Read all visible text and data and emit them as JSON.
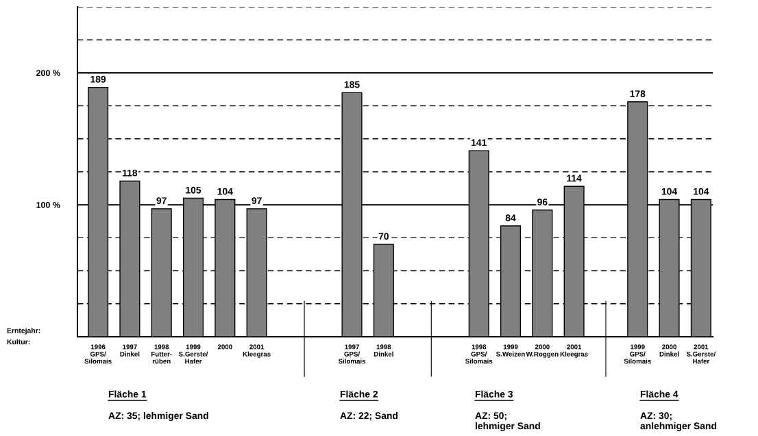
{
  "chart_data": {
    "type": "bar",
    "categories": [
      "1996\nGPS/\nSilomais",
      "1997\nDinkel",
      "1998\nFutter-\nrüben",
      "1999\nS.Gerste/\nHafer",
      "2000",
      "2001\nKleegras",
      null,
      null,
      "1997\nGPS/\nSilomais",
      "1998\nDinkel",
      null,
      null,
      "1998\nGPS/\nSilomais",
      "1999\nS.Weizen",
      "2000\nW.Roggen",
      "2001\nKleegras",
      null,
      "1999\nGPS/\nSilomais",
      "2000\nDinkel",
      "2001\nS.Gerste/\nHafer"
    ],
    "values": [
      189,
      118,
      97,
      105,
      104,
      97,
      null,
      null,
      185,
      70,
      null,
      null,
      141,
      84,
      96,
      114,
      null,
      178,
      104,
      104
    ],
    "color": "#808080",
    "data_labels": true,
    "ylim": [
      0,
      250
    ],
    "yticks": [
      {
        "value": 25,
        "label": null
      },
      {
        "value": 50,
        "label": null
      },
      {
        "value": 75,
        "label": null
      },
      {
        "value": 100,
        "label": "100 %"
      },
      {
        "value": 125,
        "label": null
      },
      {
        "value": 150,
        "label": null
      },
      {
        "value": 175,
        "label": null
      },
      {
        "value": 200,
        "label": "200 %"
      },
      {
        "value": 225,
        "label": null
      },
      {
        "value": 250,
        "label": null
      }
    ],
    "grid": "y",
    "annotations": [
      "Erntejahr:\nKultur:",
      "Fläche 1",
      "AZ: 35; lehmiger Sand",
      "Fläche 2",
      "AZ: 22; Sand",
      "Fläche 3",
      "AZ: 50;\nlehmiger Sand",
      "Fläche 4",
      "AZ: 30;\nanlehmiger Sand"
    ]
  }
}
